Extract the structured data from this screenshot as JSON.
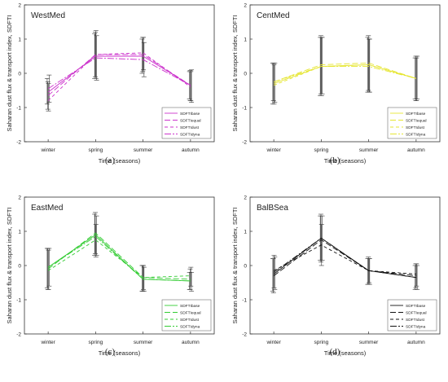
{
  "figure": {
    "panels": [
      {
        "label": "(a)"
      },
      {
        "label": "(b)"
      },
      {
        "label": "(c)"
      },
      {
        "label": "(d)"
      }
    ]
  },
  "chart_data": [
    {
      "type": "line",
      "title": "WestMed",
      "xlabel": "Time (seasons)",
      "ylabel": "Saharan dust flux & transport index, SDFTI",
      "categories": [
        "winter",
        "spring",
        "summer",
        "autumn"
      ],
      "ylim": [
        -2,
        2
      ],
      "yticks": [
        -2,
        -1,
        0,
        1,
        2
      ],
      "grid": false,
      "legend_position": "bottom-right",
      "color": "#cc33cc",
      "series": [
        {
          "name": "SDFTIbase",
          "values": [
            -0.55,
            0.5,
            0.5,
            -0.35
          ],
          "err_low": [
            -0.9,
            -0.15,
            0.0,
            -0.75
          ],
          "err_high": [
            -0.15,
            1.15,
            1.0,
            0.05
          ]
        },
        {
          "name": "SDFTIequal",
          "values": [
            -0.65,
            0.55,
            0.55,
            -0.35
          ],
          "err_low": [
            -1.05,
            -0.1,
            0.05,
            -0.8
          ],
          "err_high": [
            -0.25,
            1.2,
            1.05,
            0.08
          ]
        },
        {
          "name": "SDFTIdust",
          "values": [
            -0.8,
            0.55,
            0.6,
            -0.4
          ],
          "err_low": [
            -1.1,
            -0.15,
            0.1,
            -0.8
          ],
          "err_high": [
            -0.3,
            1.25,
            1.05,
            0.05
          ]
        },
        {
          "name": "SDFTIdyna",
          "values": [
            -0.45,
            0.45,
            0.4,
            -0.35
          ],
          "err_low": [
            -0.85,
            -0.2,
            -0.1,
            -0.85
          ],
          "err_high": [
            -0.05,
            1.1,
            0.9,
            0.1
          ]
        }
      ]
    },
    {
      "type": "line",
      "title": "CentMed",
      "xlabel": "Time (seasons)",
      "ylabel": "Saharan dust flux & transport index, SDFTI",
      "categories": [
        "winter",
        "spring",
        "summer",
        "autumn"
      ],
      "ylim": [
        -2,
        2
      ],
      "yticks": [
        -2,
        -1,
        0,
        1,
        2
      ],
      "grid": false,
      "legend_position": "bottom-right",
      "color": "#e6e633",
      "series": [
        {
          "name": "SDFTIbase",
          "values": [
            -0.3,
            0.2,
            0.25,
            -0.15
          ],
          "err_low": [
            -0.9,
            -0.65,
            -0.55,
            -0.75
          ],
          "err_high": [
            0.3,
            1.05,
            1.05,
            0.45
          ]
        },
        {
          "name": "SDFTIequal",
          "values": [
            -0.25,
            0.25,
            0.3,
            -0.15
          ],
          "err_low": [
            -0.8,
            -0.6,
            -0.5,
            -0.8
          ],
          "err_high": [
            0.3,
            1.1,
            1.1,
            0.5
          ]
        },
        {
          "name": "SDFTIdust",
          "values": [
            -0.35,
            0.2,
            0.25,
            -0.15
          ],
          "err_low": [
            -0.9,
            -0.65,
            -0.55,
            -0.8
          ],
          "err_high": [
            0.25,
            1.05,
            1.0,
            0.45
          ]
        },
        {
          "name": "SDFTIdyna",
          "values": [
            -0.25,
            0.2,
            0.2,
            -0.15
          ],
          "err_low": [
            -0.85,
            -0.6,
            -0.55,
            -0.75
          ],
          "err_high": [
            0.3,
            1.05,
            1.0,
            0.5
          ]
        }
      ]
    },
    {
      "type": "line",
      "title": "EastMed",
      "xlabel": "Time (seasons)",
      "ylabel": "Saharan dust flux & transport index, SDFTI",
      "categories": [
        "winter",
        "spring",
        "summer",
        "autumn"
      ],
      "ylim": [
        -2,
        2
      ],
      "yticks": [
        -2,
        -1,
        0,
        1,
        2
      ],
      "grid": false,
      "legend_position": "bottom-right",
      "color": "#33cc33",
      "series": [
        {
          "name": "SDFTIbase",
          "values": [
            -0.05,
            0.9,
            -0.4,
            -0.45
          ],
          "err_low": [
            -0.65,
            0.3,
            -0.75,
            -0.7
          ],
          "err_high": [
            0.5,
            1.5,
            0.0,
            -0.2
          ]
        },
        {
          "name": "SDFTIequal",
          "values": [
            -0.1,
            0.95,
            -0.35,
            -0.4
          ],
          "err_low": [
            -0.7,
            0.35,
            -0.75,
            -0.7
          ],
          "err_high": [
            0.5,
            1.55,
            0.0,
            -0.1
          ]
        },
        {
          "name": "SDFTIdust",
          "values": [
            -0.15,
            0.75,
            -0.35,
            -0.3
          ],
          "err_low": [
            -0.7,
            0.25,
            -0.7,
            -0.6
          ],
          "err_high": [
            0.45,
            1.2,
            0.0,
            -0.05
          ]
        },
        {
          "name": "SDFTIdyna",
          "values": [
            -0.05,
            0.85,
            -0.4,
            -0.45
          ],
          "err_low": [
            -0.6,
            0.3,
            -0.75,
            -0.75
          ],
          "err_high": [
            0.5,
            1.45,
            -0.05,
            -0.2
          ]
        }
      ]
    },
    {
      "type": "line",
      "title": "BalBSea",
      "xlabel": "Time (seasons)",
      "ylabel": "Saharan dust flux & transport index, SDFTI",
      "categories": [
        "winter",
        "spring",
        "summer",
        "autumn"
      ],
      "ylim": [
        -2,
        2
      ],
      "yticks": [
        -2,
        -1,
        0,
        1,
        2
      ],
      "grid": false,
      "legend_position": "bottom-right",
      "color": "#111111",
      "series": [
        {
          "name": "SDFTIbase",
          "values": [
            -0.25,
            0.8,
            -0.15,
            -0.35
          ],
          "err_low": [
            -0.75,
            0.15,
            -0.55,
            -0.7
          ],
          "err_high": [
            0.2,
            1.45,
            0.2,
            0.0
          ]
        },
        {
          "name": "SDFTIequal",
          "values": [
            -0.3,
            0.75,
            -0.15,
            -0.3
          ],
          "err_low": [
            -0.8,
            0.1,
            -0.55,
            -0.65
          ],
          "err_high": [
            0.2,
            1.5,
            0.25,
            0.05
          ]
        },
        {
          "name": "SDFTIdust",
          "values": [
            -0.15,
            0.6,
            -0.15,
            -0.25
          ],
          "err_low": [
            -0.65,
            0.0,
            -0.5,
            -0.6
          ],
          "err_high": [
            0.3,
            1.2,
            0.2,
            0.05
          ]
        },
        {
          "name": "SDFTIdyna",
          "values": [
            -0.2,
            0.8,
            -0.15,
            -0.35
          ],
          "err_low": [
            -0.7,
            0.15,
            -0.55,
            -0.7
          ],
          "err_high": [
            0.25,
            1.45,
            0.2,
            0.0
          ]
        }
      ]
    }
  ]
}
